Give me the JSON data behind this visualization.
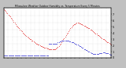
{
  "title": "Milwaukee Weather Outdoor Humidity vs. Temperature Every 5 Minutes",
  "fig_bg": "#c0c0c0",
  "plot_bg": "#ffffff",
  "red_color": "#dd0000",
  "blue_color": "#0000cc",
  "grid_color": "#aaaaaa",
  "figsize": [
    1.6,
    0.87
  ],
  "dpi": 100,
  "xlim": [
    0,
    119
  ],
  "ylim_left": [
    0,
    100
  ],
  "ylim_right": [
    0,
    8
  ],
  "n_points": 120,
  "red_y": [
    98,
    96,
    94,
    91,
    89,
    87,
    85,
    83,
    80,
    78,
    75,
    72,
    70,
    67,
    65,
    63,
    61,
    59,
    57,
    55,
    53,
    51,
    49,
    47,
    46,
    44,
    43,
    41,
    40,
    38,
    37,
    35,
    34,
    33,
    31,
    30,
    29,
    28,
    27,
    26,
    25,
    24,
    23,
    22,
    22,
    21,
    20,
    20,
    19,
    19,
    18,
    18,
    18,
    18,
    17,
    17,
    17,
    18,
    19,
    20,
    22,
    24,
    26,
    29,
    31,
    34,
    37,
    40,
    43,
    46,
    49,
    51,
    54,
    57,
    59,
    62,
    64,
    66,
    67,
    68,
    69,
    70,
    70,
    70,
    69,
    69,
    68,
    67,
    66,
    65,
    64,
    63,
    62,
    61,
    60,
    59,
    57,
    56,
    55,
    53,
    52,
    51,
    49,
    48,
    46,
    45,
    44,
    42,
    41,
    40,
    38,
    37,
    36,
    35,
    33,
    32,
    31,
    30,
    28,
    27
  ],
  "blue_y": [
    4,
    4,
    4,
    4,
    4,
    4,
    4,
    4,
    4,
    4,
    4,
    4,
    4,
    4,
    4,
    4,
    4,
    4,
    4,
    4,
    4,
    4,
    4,
    4,
    4,
    4,
    4,
    4,
    4,
    4,
    5,
    5,
    5,
    5,
    5,
    5,
    5,
    5,
    5,
    5,
    5,
    5,
    5,
    5,
    5,
    5,
    5,
    5,
    5,
    5,
    28,
    28,
    28,
    28,
    28,
    28,
    28,
    28,
    28,
    28,
    32,
    32,
    33,
    33,
    34,
    34,
    34,
    35,
    35,
    35,
    35,
    34,
    34,
    33,
    33,
    32,
    32,
    31,
    30,
    29,
    28,
    27,
    26,
    25,
    24,
    23,
    22,
    21,
    20,
    18,
    17,
    16,
    15,
    14,
    13,
    12,
    11,
    10,
    9,
    8,
    8,
    8,
    8,
    8,
    8,
    8,
    9,
    9,
    10,
    10,
    11,
    11,
    11,
    10,
    10,
    9,
    9,
    8,
    7,
    6
  ],
  "right_yticks": [
    0,
    1,
    2,
    3,
    4,
    5,
    6,
    7
  ],
  "right_ylabels": [
    "0",
    "1",
    "2",
    "3",
    "4",
    "5",
    "6",
    "7"
  ]
}
